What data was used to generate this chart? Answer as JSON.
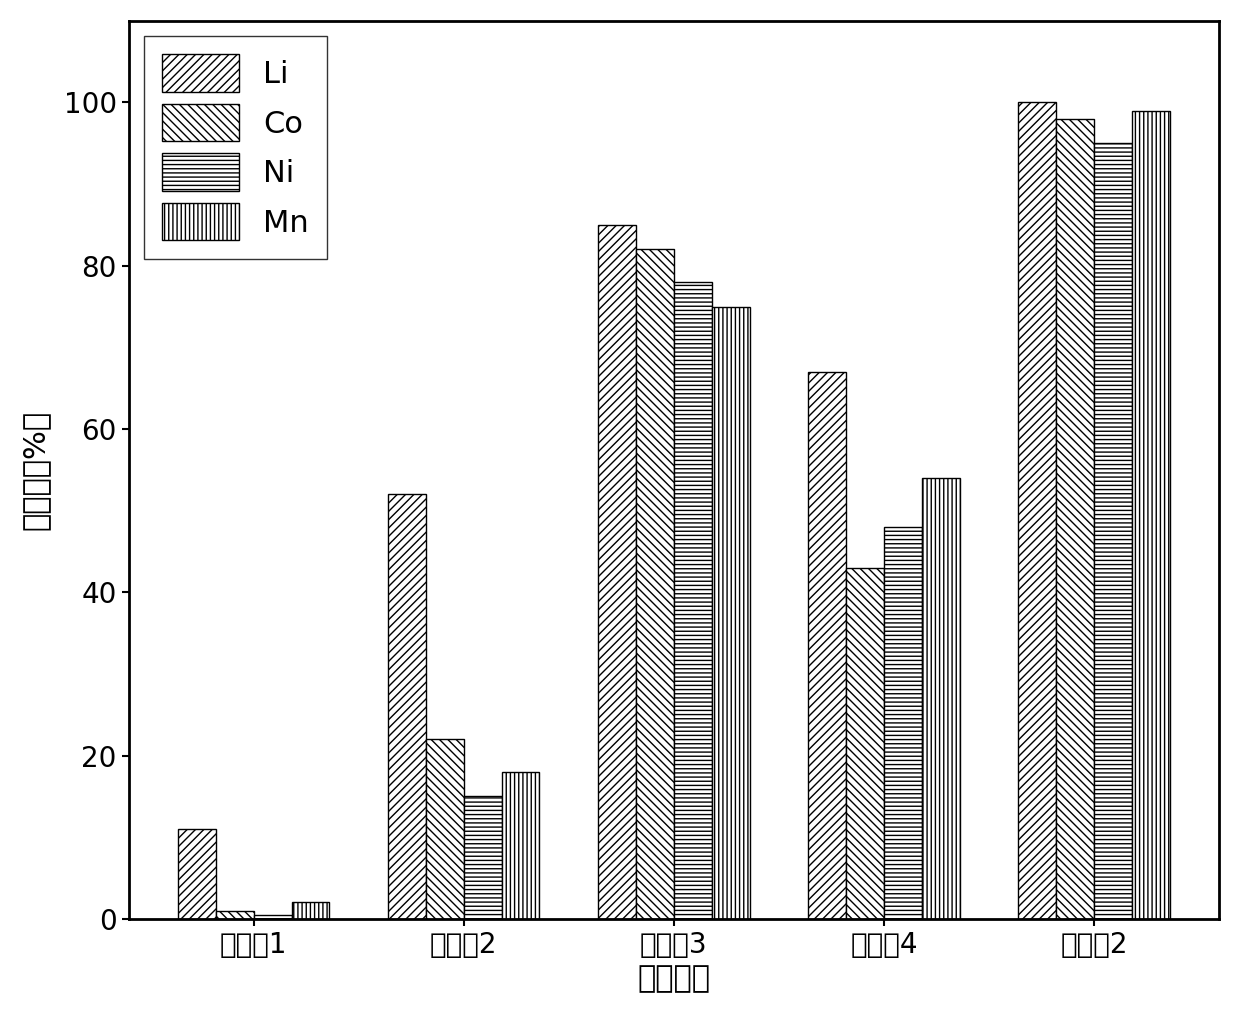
{
  "categories": [
    "对比例1",
    "对比例2",
    "对比例3",
    "对比例4",
    "实施例2"
  ],
  "series": {
    "Li": [
      11,
      52,
      85,
      67,
      100
    ],
    "Co": [
      1,
      22,
      82,
      43,
      98
    ],
    "Ni": [
      0.5,
      15,
      78,
      48,
      95
    ],
    "Mn": [
      2,
      18,
      75,
      54,
      99
    ]
  },
  "ylabel": "浸出率（%）",
  "xlabel": "实例编号",
  "ylim": [
    0,
    110
  ],
  "yticks": [
    0,
    20,
    40,
    60,
    80,
    100
  ],
  "bar_width": 0.18,
  "background_color": "#ffffff",
  "edge_color": "#000000",
  "hatch_patterns": {
    "Li": "////",
    "Co": "\\\\\\\\",
    "Ni": "----",
    "Mn": "||||"
  },
  "legend_labels": [
    "Li",
    "Co",
    "Ni",
    "Mn"
  ],
  "face_color": "#ffffff",
  "label_fontsize": 22,
  "tick_fontsize": 20,
  "legend_fontsize": 22
}
